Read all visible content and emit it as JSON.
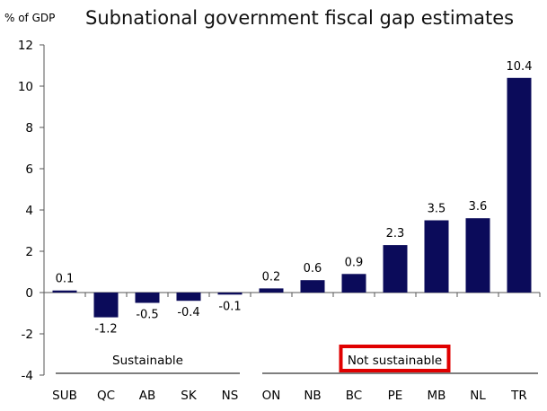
{
  "chart_data": {
    "type": "bar",
    "title": "Subnational government fiscal gap estimates",
    "ylabel": "% of GDP",
    "xlabel": "",
    "ylim": [
      -4,
      12
    ],
    "yticks": [
      12,
      10,
      8,
      6,
      4,
      2,
      0,
      -2,
      -4
    ],
    "grid": false,
    "categories": [
      "SUB",
      "QC",
      "AB",
      "SK",
      "NS",
      "ON",
      "NB",
      "BC",
      "PE",
      "MB",
      "NL",
      "TR"
    ],
    "values": [
      0.1,
      -1.2,
      -0.5,
      -0.4,
      -0.1,
      0.2,
      0.6,
      0.9,
      2.3,
      3.5,
      3.6,
      10.4
    ],
    "data_labels": [
      "0.1",
      "-1.2",
      "-0.5",
      "-0.4",
      "-0.1",
      "0.2",
      "0.6",
      "0.9",
      "2.3",
      "3.5",
      "3.6",
      "10.4"
    ],
    "bar_color": "#0b0b5a",
    "groups": [
      {
        "label": "Sustainable",
        "from": 0,
        "to": 4,
        "highlighted": false
      },
      {
        "label": "Not sustainable",
        "from": 5,
        "to": 11,
        "highlighted": true,
        "highlight_color": "#e00000"
      }
    ]
  }
}
